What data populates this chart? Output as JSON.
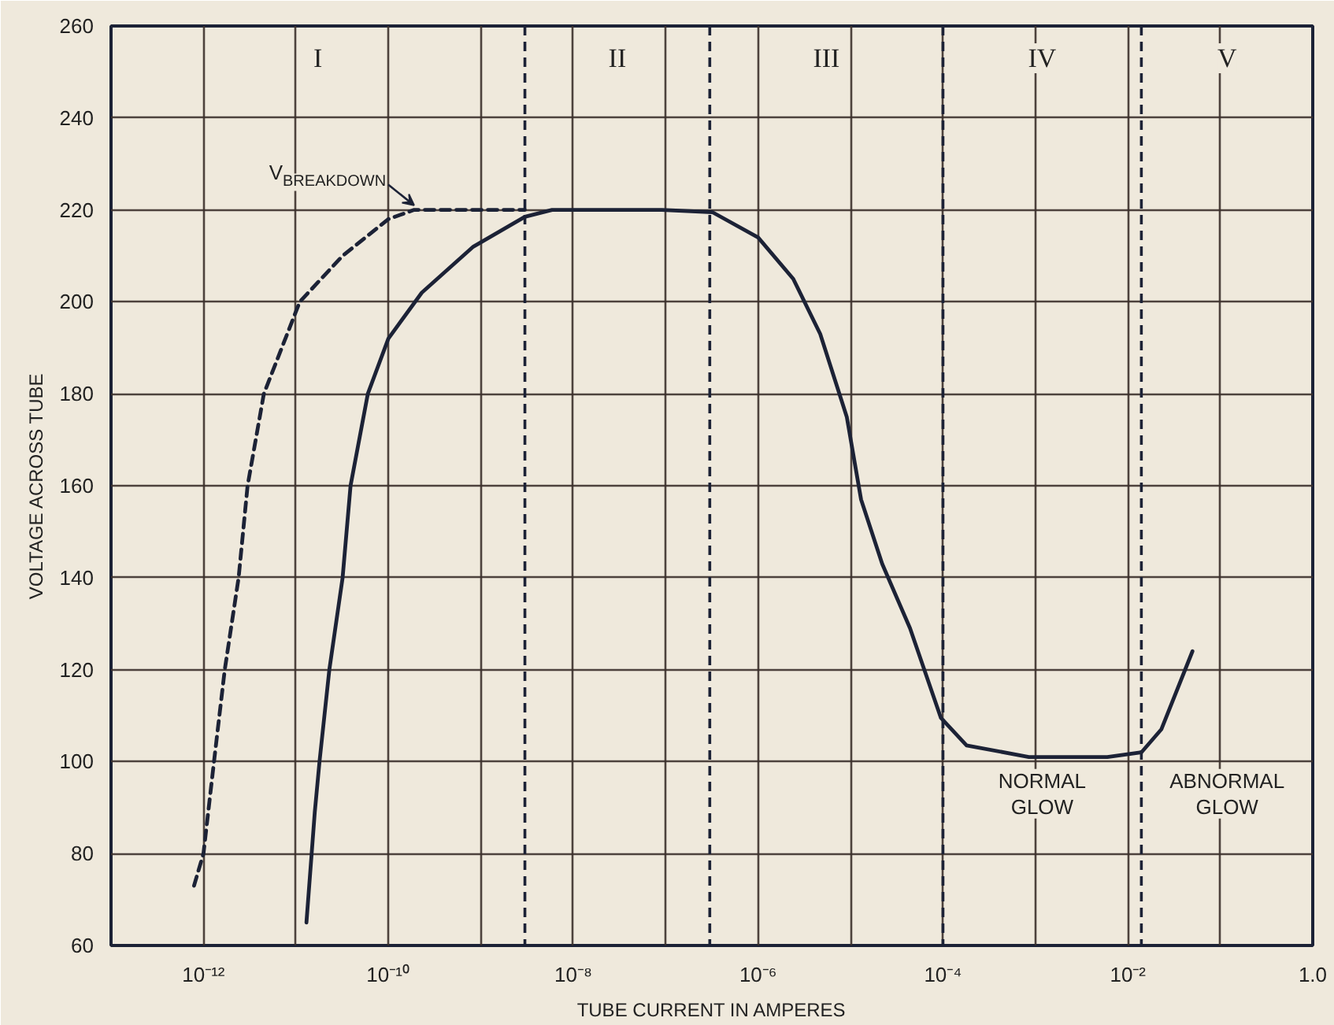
{
  "chart_data": {
    "type": "line",
    "xlabel": "TUBE CURRENT IN AMPERES",
    "ylabel": "VOLTAGE ACROSS TUBE",
    "log": "x",
    "xlim": [
      1e-13,
      1
    ],
    "ylim": [
      60,
      260
    ],
    "xticks": [
      {
        "value": 1e-12,
        "label": "10⁻¹²"
      },
      {
        "value": 1e-11,
        "label": null
      },
      {
        "value": 1e-10,
        "label": "10⁻¹⁰"
      },
      {
        "value": 1e-09,
        "label": null
      },
      {
        "value": 1e-08,
        "label": "10⁻⁸"
      },
      {
        "value": 1e-07,
        "label": null
      },
      {
        "value": 1e-06,
        "label": "10⁻⁶"
      },
      {
        "value": 1e-05,
        "label": null
      },
      {
        "value": 0.0001,
        "label": "10⁻⁴"
      },
      {
        "value": 0.001,
        "label": null
      },
      {
        "value": 0.01,
        "label": "10⁻²"
      },
      {
        "value": 0.1,
        "label": null
      },
      {
        "value": 1,
        "label": "1.0"
      }
    ],
    "yticks": [
      60,
      80,
      100,
      120,
      140,
      160,
      180,
      200,
      220,
      240,
      260
    ],
    "grid": true,
    "series": [
      {
        "color": "#1c2236",
        "line_style": "dashed",
        "x": [
          7.9e-13,
          1e-12,
          1.3e-12,
          1.7e-12,
          2.4e-12,
          3e-12,
          4.5e-12,
          1.1e-11,
          3.2e-11,
          1e-10,
          1.9e-10,
          3e-09
        ],
        "values": [
          73,
          80,
          100,
          120,
          140,
          160,
          180,
          200,
          210,
          218,
          220,
          220
        ]
      },
      {
        "color": "#1c2236",
        "line_style": "solid",
        "x": [
          1.3e-11,
          1.6e-11,
          1.8e-11,
          2.3e-11,
          3.2e-11,
          3.9e-11,
          6e-11,
          1e-10,
          2.3e-10,
          8.3e-10,
          3e-09,
          5.9e-09,
          9.1e-08,
          3.2e-07,
          1e-06,
          2.4e-06,
          4.7e-06,
          9.1e-06,
          1.3e-05,
          2.2e-05,
          4.4e-05,
          9.5e-05,
          0.00018,
          0.00085,
          0.006,
          0.014,
          0.023,
          0.05
        ],
        "values": [
          65,
          89,
          100,
          120,
          140,
          160,
          180,
          192,
          202,
          212,
          218.5,
          220,
          220,
          219.5,
          214,
          205,
          193,
          175,
          157,
          143,
          129,
          109.5,
          103.5,
          101,
          101,
          102,
          107,
          124
        ]
      }
    ],
    "ref_lines": [
      {
        "axis": "x",
        "value": 3e-09,
        "color": "#1c2236",
        "line_style": "dashed"
      },
      {
        "axis": "x",
        "value": 3e-07,
        "color": "#1c2236",
        "line_style": "dashed"
      },
      {
        "axis": "x",
        "value": 0.0001,
        "color": "#1c2236",
        "line_style": "dashed"
      },
      {
        "axis": "x",
        "value": 0.014,
        "color": "#1c2236",
        "line_style": "dashed"
      }
    ],
    "annotations": [
      {
        "text": "V$_{BREAKDOWN}$",
        "x": 1.9e-10,
        "y": 220
      },
      "I",
      "II",
      "III",
      "IV",
      "V",
      "NORMAL\nGLOW",
      "ABNORMAL\nGLOW"
    ]
  }
}
